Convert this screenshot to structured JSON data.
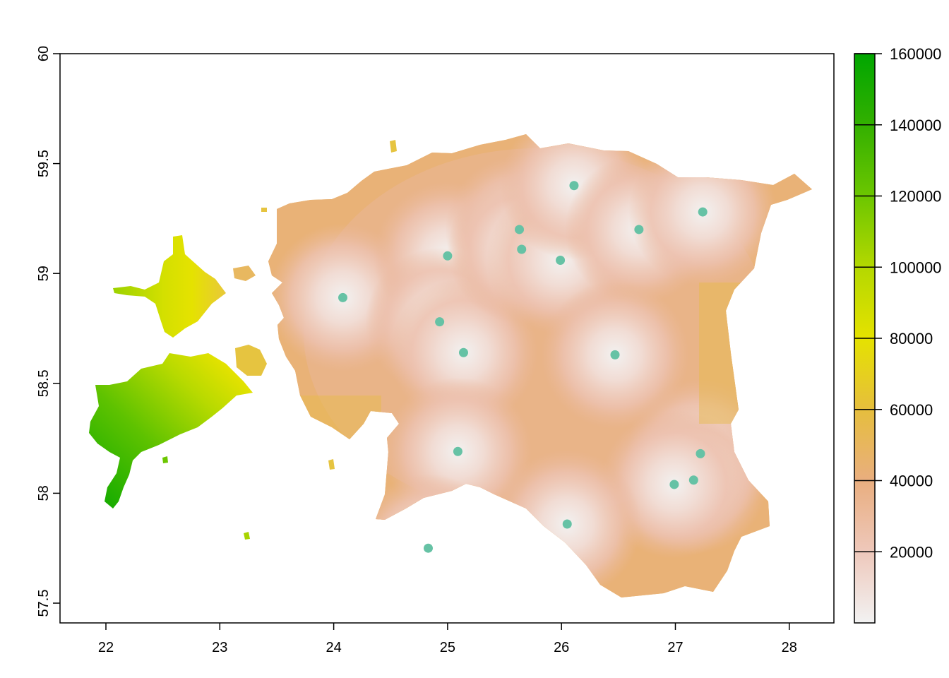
{
  "chart_data": {
    "type": "heatmap",
    "description_kind": "raster map with point overlay",
    "title": "",
    "xlabel": "",
    "ylabel": "",
    "xlim": [
      21.6,
      28.4
    ],
    "ylim": [
      57.43,
      60.0
    ],
    "x_ticks": [
      22,
      23,
      24,
      25,
      26,
      27,
      28
    ],
    "y_ticks": [
      57.5,
      58,
      58.5,
      59,
      59.5,
      60
    ],
    "y_tick_labels": [
      "57.5",
      "58",
      "58.5",
      "59",
      "59.5",
      "60"
    ],
    "grid": false,
    "legend": {
      "placement": "right",
      "min": 0,
      "max": 160000,
      "ticks": [
        20000,
        40000,
        60000,
        80000,
        100000,
        120000,
        140000,
        160000
      ],
      "colors": [
        {
          "value": 0,
          "color": "#F2F2F2"
        },
        {
          "value": 20000,
          "color": "#EEC8BB"
        },
        {
          "value": 40000,
          "color": "#E9AE7F"
        },
        {
          "value": 60000,
          "color": "#E6BE3D"
        },
        {
          "value": 80000,
          "color": "#E5E200"
        },
        {
          "value": 100000,
          "color": "#B4D800"
        },
        {
          "value": 120000,
          "color": "#6CC600"
        },
        {
          "value": 140000,
          "color": "#33B000"
        },
        {
          "value": 160000,
          "color": "#00A600"
        }
      ]
    },
    "points": {
      "color": "#66C2A5",
      "coords": [
        [
          24.08,
          58.89
        ],
        [
          25.0,
          59.08
        ],
        [
          24.93,
          58.78
        ],
        [
          25.14,
          58.64
        ],
        [
          25.63,
          59.2
        ],
        [
          25.65,
          59.11
        ],
        [
          25.99,
          59.06
        ],
        [
          26.11,
          59.4
        ],
        [
          26.68,
          59.2
        ],
        [
          27.24,
          59.28
        ],
        [
          26.47,
          58.63
        ],
        [
          25.09,
          58.19
        ],
        [
          27.22,
          58.18
        ],
        [
          27.16,
          58.06
        ],
        [
          26.99,
          58.04
        ],
        [
          26.05,
          57.86
        ],
        [
          24.83,
          57.75
        ]
      ]
    }
  }
}
